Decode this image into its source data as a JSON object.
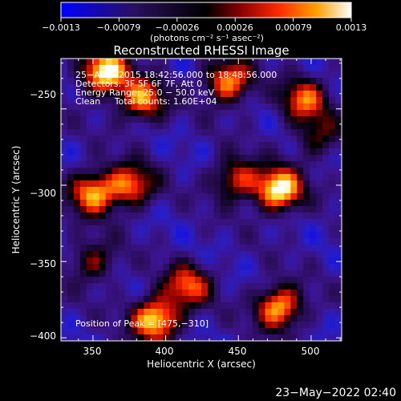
{
  "chart_data": {
    "type": "heatmap",
    "title": "Reconstructed RHESSI Image",
    "xlabel": "Heliocentric X (arcsec)",
    "ylabel": "Heliocentric Y (arcsec)",
    "xlim": [
      328,
      521
    ],
    "ylim": [
      -402,
      -217
    ],
    "x_ticks": [
      350,
      400,
      450,
      500
    ],
    "y_ticks": [
      -250,
      -300,
      -350,
      -400
    ],
    "x_tick_labels": [
      "350",
      "400",
      "450",
      "500"
    ],
    "y_tick_labels": [
      "−250",
      "−300",
      "−350",
      "−400"
    ],
    "colorbar": {
      "min": -0.0013,
      "max": 0.0013,
      "tick_labels": [
        "−0.0013",
        "−0.00079",
        "−0.00026",
        "0.00026",
        "0.00079",
        "0.0013"
      ],
      "units_label": "(photons cm⁻² s⁻¹ asec⁻²)"
    },
    "info_lines": [
      "25−Aug−2015 18:42:56.000 to 18:48:56.000",
      "Detectors: 3F 5F 6F 7F, Att 0",
      "Energy Range: 25.0 − 50.0 keV",
      "Clean     Total counts: 1.60E+04"
    ],
    "peak_label": "Position of Peak = [475,−310]",
    "peak_position": [
      475,
      -310
    ],
    "sources": [
      {
        "x": 358,
        "y": -226,
        "intensity": 1.0
      },
      {
        "x": 384,
        "y": -244,
        "intensity": 0.75
      },
      {
        "x": 443,
        "y": -232,
        "intensity": 0.8
      },
      {
        "x": 495,
        "y": -244,
        "intensity": 0.65
      },
      {
        "x": 478,
        "y": -303,
        "intensity": 1.0
      },
      {
        "x": 448,
        "y": -296,
        "intensity": 0.6
      },
      {
        "x": 350,
        "y": -305,
        "intensity": 0.8
      },
      {
        "x": 376,
        "y": -300,
        "intensity": 0.7
      },
      {
        "x": 350,
        "y": -350,
        "intensity": 0.45
      },
      {
        "x": 393,
        "y": -388,
        "intensity": 0.95
      },
      {
        "x": 415,
        "y": -366,
        "intensity": 0.65
      },
      {
        "x": 478,
        "y": -380,
        "intensity": 0.85
      },
      {
        "x": 505,
        "y": -268,
        "intensity": 0.4
      }
    ]
  },
  "footer": {
    "date": "23−May−2022 02:40"
  }
}
